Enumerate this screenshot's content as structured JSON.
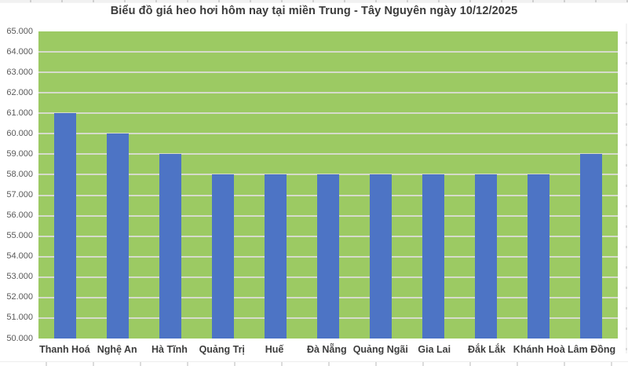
{
  "page": {
    "title": "Biểu đồ giá heo hơi hôm nay tại miền Trung - Tây Nguyên ngày 10/12/2025"
  },
  "chart_data": {
    "type": "bar",
    "title": "Biểu đồ giá heo hơi hôm nay tại miền Trung - Tây Nguyên ngày 10/12/2025",
    "categories": [
      "Thanh Hoá",
      "Nghệ An",
      "Hà Tĩnh",
      "Quảng Trị",
      "Huế",
      "Đà Nẵng",
      "Quảng Ngãi",
      "Gia Lai",
      "Đắk Lắk",
      "Khánh Hoà",
      "Lâm Đồng"
    ],
    "values": [
      61000,
      60000,
      59000,
      58000,
      58000,
      58000,
      58000,
      58000,
      58000,
      58000,
      59000
    ],
    "xlabel": "",
    "ylabel": "",
    "ylim": [
      50000,
      65000
    ],
    "ytick_step": 1000,
    "ytick_labels": [
      "65.000",
      "64.000",
      "63.000",
      "62.000",
      "61.000",
      "60.000",
      "59.000",
      "58.000",
      "57.000",
      "56.000",
      "55.000",
      "54.000",
      "53.000",
      "52.000",
      "51.000",
      "50.000"
    ],
    "grid": true,
    "legend": "none",
    "colors": {
      "plot_background": "#9cca63",
      "bar": "#4d74c5",
      "gridline": "#d9dbd1",
      "title_text": "#3b3b3b",
      "ytick_text": "#595959",
      "xtick_text": "#3d3d3d"
    }
  }
}
